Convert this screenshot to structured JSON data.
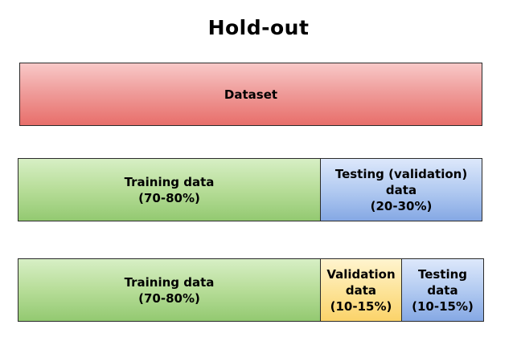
{
  "title": "Hold-out",
  "row1": {
    "dataset_label": "Dataset"
  },
  "row2": {
    "training_label": "Training data\n(70-80%)",
    "testing_label": "Testing (validation)\ndata\n(20-30%)"
  },
  "row3": {
    "training_label": "Training data\n(70-80%)",
    "validation_label": "Validation\ndata\n(10-15%)",
    "testing_label": "Testing\ndata\n(10-15%)"
  },
  "colors": {
    "dataset": "#ef9e9c",
    "training": "#b7dd98",
    "testing": "#b3cbf1",
    "validation": "#fde49a"
  }
}
